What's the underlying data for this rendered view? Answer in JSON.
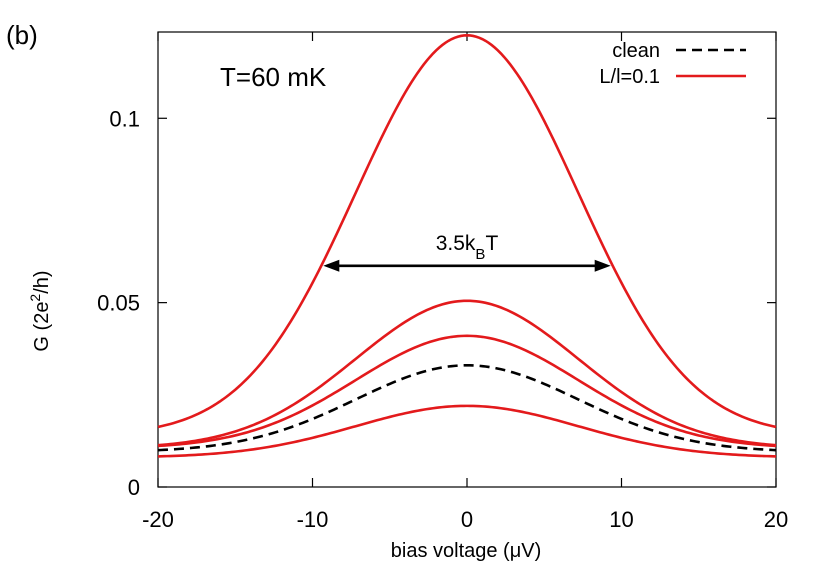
{
  "panel_label": "(b)",
  "chart_data": {
    "type": "line",
    "title": "",
    "xlabel": "bias voltage (μV)",
    "ylabel": "G (2e²/h)",
    "ylabel_parts": {
      "pre": "G (2e",
      "sup": "2",
      "post": "/h)"
    },
    "xlim": [
      -20,
      20
    ],
    "ylim": [
      0,
      0.1234
    ],
    "xticks": [
      -20,
      -10,
      0,
      10,
      20
    ],
    "xtick_labels": [
      "-20",
      "-10",
      "0",
      "10",
      "20"
    ],
    "yticks": [
      0,
      0.05,
      0.1
    ],
    "ytick_labels": [
      "0",
      "0.05",
      "0.1"
    ],
    "grid": false,
    "legend_position": "top-right",
    "legend": [
      {
        "label": "clean",
        "color": "#000000",
        "dash": "dashed"
      },
      {
        "label": "L/l=0.1",
        "color": "#e31a1c",
        "dash": "solid"
      }
    ],
    "annotations": {
      "temperature": "T=60 mK",
      "arrow_label": "3.5k",
      "arrow_label_sub": "B",
      "arrow_label_post": "T",
      "arrow_x": [
        -9.3,
        9.3
      ],
      "arrow_y": 0.06
    },
    "series": [
      {
        "color": "#e31a1c",
        "dash": "solid",
        "peak": 0.1225,
        "base": 0.014,
        "width": 7.2
      },
      {
        "color": "#e31a1c",
        "dash": "solid",
        "peak": 0.0505,
        "base": 0.0105,
        "width": 7.2
      },
      {
        "color": "#e31a1c",
        "dash": "solid",
        "peak": 0.041,
        "base": 0.0105,
        "width": 7.2
      },
      {
        "color": "#000000",
        "dash": "dashed",
        "peak": 0.033,
        "base": 0.0095,
        "width": 7.2
      },
      {
        "color": "#e31a1c",
        "dash": "solid",
        "peak": 0.022,
        "base": 0.008,
        "width": 7.2
      }
    ]
  }
}
